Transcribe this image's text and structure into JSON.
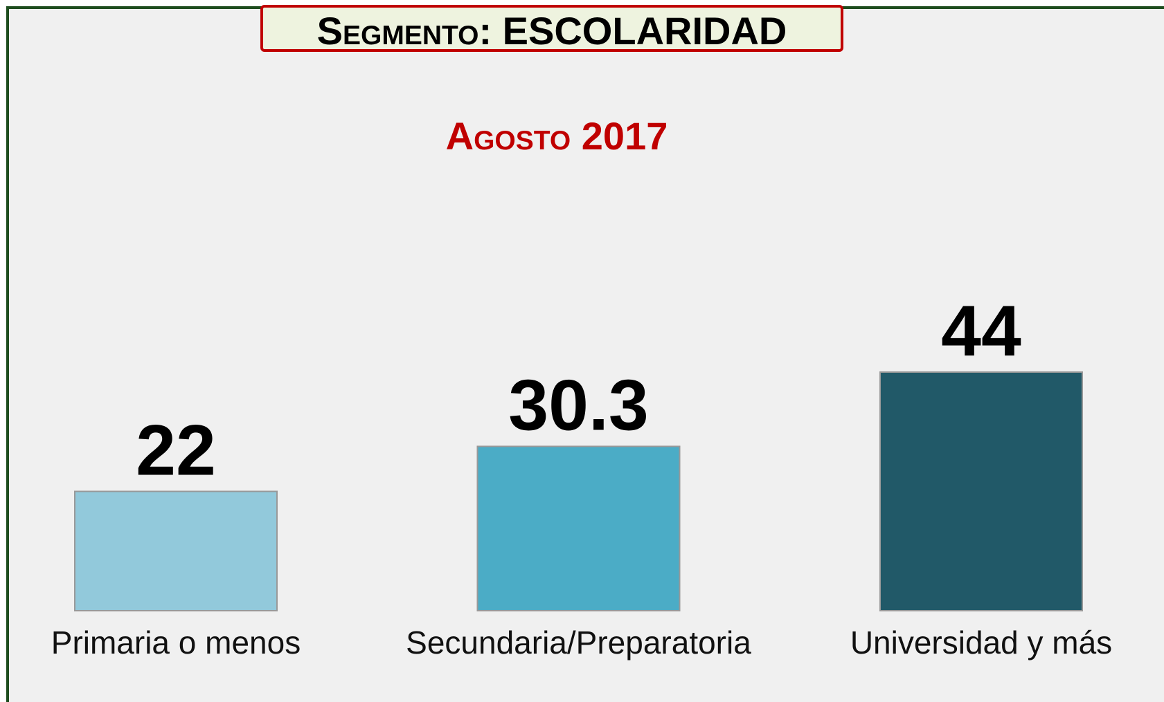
{
  "chart_data": {
    "type": "bar",
    "title": "Segmento: ESCOLARIDAD",
    "subtitle": "Agosto 2017",
    "categories": [
      "Primaria o menos",
      "Secundaria/Preparatoria",
      "Universidad y más"
    ],
    "values": [
      22,
      30.3,
      44
    ],
    "colors": [
      "#92c9db",
      "#4bacc6",
      "#215968"
    ]
  }
}
